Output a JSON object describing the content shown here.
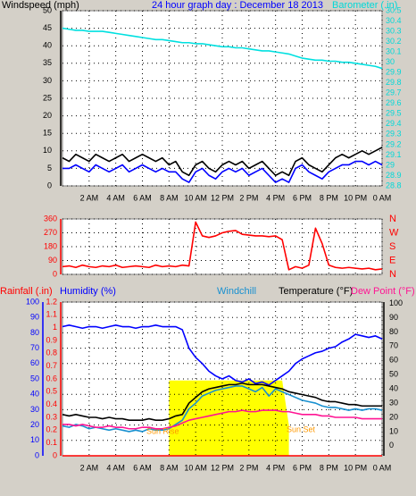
{
  "chart_data": [
    {
      "type": "line",
      "title": "24 hour graph day : December 18 2013",
      "ylabel": "Windspeed (mph)",
      "y2label": "Barometer (.in)",
      "x": [
        0,
        0.5,
        1,
        1.5,
        2,
        2.5,
        3,
        3.5,
        4,
        4.5,
        5,
        5.5,
        6,
        6.5,
        7,
        7.5,
        8,
        8.5,
        9,
        9.5,
        10,
        10.5,
        11,
        11.5,
        12,
        12.5,
        13,
        13.5,
        14,
        14.5,
        15,
        15.5,
        16,
        16.5,
        17,
        17.5,
        18,
        18.5,
        19,
        19.5,
        20,
        20.5,
        21,
        21.5,
        22,
        22.5,
        23,
        23.5,
        24
      ],
      "xlim": [
        0,
        24
      ],
      "xticks": [
        {
          "value": 2,
          "label": "2 AM"
        },
        {
          "value": 4,
          "label": "4 AM"
        },
        {
          "value": 6,
          "label": "6 AM"
        },
        {
          "value": 8,
          "label": "8 AM"
        },
        {
          "value": 10,
          "label": "10 AM"
        },
        {
          "value": 12,
          "label": "12 PM"
        },
        {
          "value": 14,
          "label": "2 PM"
        },
        {
          "value": 16,
          "label": "4 PM"
        },
        {
          "value": 18,
          "label": "6 PM"
        },
        {
          "value": 20,
          "label": "8 PM"
        },
        {
          "value": 22,
          "label": "10 PM"
        },
        {
          "value": 24,
          "label": "0 AM"
        }
      ],
      "ylim": [
        0,
        50
      ],
      "yticks": [
        0,
        5,
        10,
        15,
        20,
        25,
        30,
        35,
        40,
        45,
        50
      ],
      "y2lim": [
        28.8,
        30.5
      ],
      "y2ticks": [
        28.8,
        28.9,
        29,
        29.1,
        29.2,
        29.3,
        29.4,
        29.5,
        29.6,
        29.7,
        29.8,
        29.9,
        30,
        30.1,
        30.2,
        30.3,
        30.4,
        30.5
      ],
      "grid": true,
      "series": [
        {
          "color": "#000000",
          "values": [
            8,
            7,
            9,
            8,
            7,
            9,
            8,
            7,
            8,
            9,
            7,
            8,
            9,
            8,
            7,
            8,
            6,
            7,
            4,
            3,
            6,
            7,
            5,
            4,
            6,
            7,
            6,
            7,
            5,
            6,
            7,
            5,
            3,
            4,
            3,
            7,
            8,
            6,
            5,
            4,
            6,
            8,
            9,
            8,
            9,
            10,
            9,
            10,
            11
          ]
        },
        {
          "color": "#0000ff",
          "values": [
            5,
            5,
            6,
            5,
            4,
            6,
            5,
            4,
            5,
            6,
            4,
            5,
            6,
            5,
            4,
            5,
            4,
            4,
            2,
            1,
            4,
            5,
            3,
            2,
            4,
            5,
            4,
            5,
            3,
            4,
            5,
            3,
            1,
            2,
            1,
            5,
            6,
            4,
            3,
            2,
            4,
            5,
            6,
            6,
            7,
            7,
            6,
            7,
            6
          ]
        },
        {
          "color": "#00e0e0",
          "axis": "y2",
          "values": [
            30.33,
            30.32,
            30.31,
            30.31,
            30.3,
            30.3,
            30.3,
            30.29,
            30.28,
            30.27,
            30.26,
            30.25,
            30.24,
            30.23,
            30.22,
            30.22,
            30.21,
            30.2,
            30.19,
            30.19,
            30.18,
            30.18,
            30.17,
            30.16,
            30.15,
            30.15,
            30.14,
            30.14,
            30.13,
            30.12,
            30.11,
            30.11,
            30.1,
            30.09,
            30.08,
            30.06,
            30.04,
            30.03,
            30.02,
            30.02,
            30.01,
            30.01,
            30.0,
            30.0,
            29.99,
            29.98,
            29.97,
            29.96,
            29.94
          ]
        }
      ]
    },
    {
      "type": "line",
      "x": [
        0,
        0.5,
        1,
        1.5,
        2,
        2.5,
        3,
        3.5,
        4,
        4.5,
        5,
        5.5,
        6,
        6.5,
        7,
        7.5,
        8,
        8.5,
        9,
        9.5,
        10,
        10.5,
        11,
        11.5,
        12,
        12.5,
        13,
        13.5,
        14,
        14.5,
        15,
        15.5,
        16,
        16.5,
        17,
        17.5,
        18,
        18.5,
        19,
        19.5,
        20,
        20.5,
        21,
        21.5,
        22,
        22.5,
        23,
        23.5,
        24
      ],
      "xlim": [
        0,
        24
      ],
      "xticks": [
        2,
        4,
        6,
        8,
        10,
        12,
        14,
        16,
        18,
        20,
        22,
        24
      ],
      "ylim": [
        0,
        360
      ],
      "yticks": [
        0,
        90,
        180,
        270,
        360
      ],
      "y2lim": [
        0,
        360
      ],
      "y2ticks": [
        {
          "value": 0,
          "label": "N"
        },
        {
          "value": 90,
          "label": "E"
        },
        {
          "value": 180,
          "label": "S"
        },
        {
          "value": 270,
          "label": "W"
        },
        {
          "value": 360,
          "label": "N"
        }
      ],
      "grid": true,
      "series": [
        {
          "color": "#ff0000",
          "values": [
            50,
            55,
            45,
            60,
            50,
            45,
            55,
            50,
            60,
            45,
            50,
            55,
            50,
            45,
            60,
            50,
            55,
            50,
            60,
            55,
            340,
            250,
            240,
            250,
            270,
            280,
            285,
            260,
            255,
            250,
            250,
            245,
            250,
            225,
            30,
            50,
            40,
            60,
            300,
            200,
            60,
            45,
            40,
            45,
            40,
            35,
            40,
            30,
            35
          ]
        }
      ]
    },
    {
      "type": "line",
      "x": [
        0,
        0.5,
        1,
        1.5,
        2,
        2.5,
        3,
        3.5,
        4,
        4.5,
        5,
        5.5,
        6,
        6.5,
        7,
        7.5,
        8,
        8.5,
        9,
        9.5,
        10,
        10.5,
        11,
        11.5,
        12,
        12.5,
        13,
        13.5,
        14,
        14.5,
        15,
        15.5,
        16,
        16.5,
        17,
        17.5,
        18,
        18.5,
        19,
        19.5,
        20,
        20.5,
        21,
        21.5,
        22,
        22.5,
        23,
        23.5,
        24
      ],
      "xlim": [
        0,
        24
      ],
      "xticks": [
        {
          "value": 2,
          "label": "2 AM"
        },
        {
          "value": 4,
          "label": "4 AM"
        },
        {
          "value": 6,
          "label": "6 AM"
        },
        {
          "value": 8,
          "label": "8 AM"
        },
        {
          "value": 10,
          "label": "10 AM"
        },
        {
          "value": 12,
          "label": "12 PM"
        },
        {
          "value": 14,
          "label": "2 PM"
        },
        {
          "value": 16,
          "label": "4 PM"
        },
        {
          "value": 18,
          "label": "6 PM"
        },
        {
          "value": 20,
          "label": "8 PM"
        },
        {
          "value": 22,
          "label": "10 PM"
        },
        {
          "value": 24,
          "label": "0 AM"
        }
      ],
      "ylim": [
        0,
        100
      ],
      "yticks": [
        0,
        10,
        20,
        30,
        40,
        50,
        60,
        70,
        80,
        90,
        100
      ],
      "y2lim": [
        -7,
        101
      ],
      "y2ticks": [
        0,
        10,
        20,
        30,
        40,
        50,
        60,
        70,
        80,
        90,
        100
      ],
      "y3lim": [
        0,
        1.2
      ],
      "y3ticks": [
        0,
        0.1,
        0.2,
        0.3,
        0.4,
        0.5,
        0.6,
        0.7,
        0.8,
        0.9,
        1,
        1.1,
        1.2
      ],
      "grid": true,
      "annotations": [
        "Sun Rise",
        "Sun Set"
      ],
      "series": [
        {
          "name": "Rainfall (.in)",
          "color": "#ff0000",
          "axis": "y3",
          "values": [
            0,
            0,
            0,
            0,
            0,
            0,
            0,
            0,
            0,
            0,
            0,
            0,
            0,
            0,
            0,
            0,
            0,
            0,
            0,
            0,
            0,
            0,
            0,
            0,
            0,
            0,
            0,
            0,
            0,
            0,
            0,
            0,
            0,
            0,
            0,
            0,
            0,
            0,
            0,
            0,
            0,
            0,
            0,
            0,
            0,
            0,
            0,
            0,
            0
          ]
        },
        {
          "name": "Humidity (%)",
          "color": "#0000ff",
          "values": [
            84,
            85,
            84,
            83,
            84,
            84,
            83,
            84,
            85,
            84,
            84,
            83,
            84,
            84,
            85,
            84,
            84,
            84,
            82,
            70,
            64,
            60,
            55,
            52,
            50,
            52,
            49,
            48,
            50,
            47,
            48,
            46,
            49,
            52,
            55,
            60,
            63,
            65,
            67,
            68,
            70,
            71,
            74,
            76,
            79,
            78,
            77,
            78,
            76
          ]
        },
        {
          "name": "Windchill",
          "color": "#1890d0",
          "axis": "y2",
          "values": [
            14,
            13,
            15,
            14,
            12,
            13,
            12,
            11,
            12,
            11,
            10,
            11,
            10,
            12,
            11,
            11,
            12,
            15,
            18,
            26,
            30,
            35,
            37,
            39,
            40,
            41,
            42,
            42,
            40,
            38,
            41,
            35,
            40,
            38,
            36,
            34,
            32,
            31,
            30,
            28,
            27,
            27,
            26,
            25,
            26,
            25,
            26,
            26,
            25
          ]
        },
        {
          "name": "Temperature (°F)",
          "color": "#000000",
          "axis": "y2",
          "values": [
            22,
            21,
            22,
            21,
            20,
            20,
            19,
            20,
            19,
            19,
            18,
            18,
            18,
            19,
            18,
            18,
            19,
            21,
            22,
            30,
            34,
            38,
            40,
            41,
            42,
            43,
            43,
            44,
            43,
            43,
            43,
            42,
            41,
            40,
            38,
            37,
            36,
            35,
            34,
            32,
            31,
            31,
            30,
            29,
            29,
            28,
            28,
            28,
            28
          ]
        },
        {
          "name": "Dew Point (°F)",
          "color": "#ff1493",
          "axis": "y2",
          "values": [
            15,
            15,
            14,
            15,
            14,
            13,
            13,
            14,
            13,
            13,
            12,
            12,
            13,
            13,
            12,
            12,
            13,
            14,
            16,
            18,
            19,
            20,
            21,
            22,
            23,
            24,
            24,
            25,
            24,
            24,
            25,
            25,
            25,
            24,
            24,
            23,
            22,
            22,
            22,
            21,
            21,
            20,
            20,
            20,
            20,
            19,
            19,
            19,
            19
          ]
        },
        {
          "color": "#ffff00",
          "area": true,
          "values": [
            null,
            null,
            null,
            null,
            null,
            null,
            null,
            null,
            null,
            null,
            null,
            null,
            null,
            null,
            null,
            null,
            49,
            49,
            49,
            49,
            49,
            49,
            49,
            49,
            49,
            49,
            49,
            49,
            49,
            49,
            49,
            49,
            49,
            49,
            20,
            null,
            null,
            null,
            null,
            null,
            null,
            null,
            null,
            null,
            null,
            null,
            null,
            null,
            null
          ]
        }
      ]
    }
  ]
}
